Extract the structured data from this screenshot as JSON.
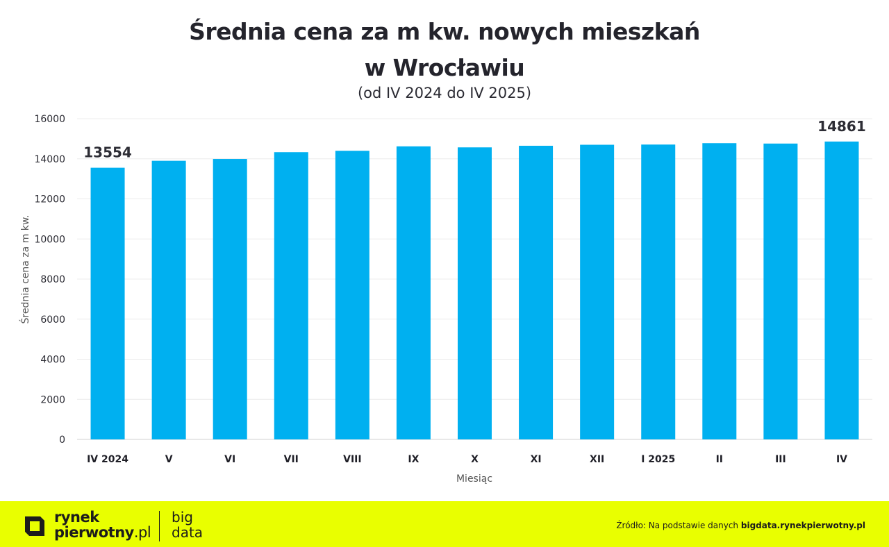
{
  "chart_data": {
    "type": "bar",
    "title_line1": "Średnia cena za m kw. nowych mieszkań",
    "title_line2": "w Wrocławiu",
    "subtitle": "(od IV 2024 do IV 2025)",
    "xlabel": "Miesiąc",
    "ylabel": "Średnia cena za m kw.",
    "categories": [
      "IV 2024",
      "V",
      "VI",
      "VII",
      "VIII",
      "IX",
      "X",
      "XI",
      "XII",
      "I 2025",
      "II",
      "III",
      "IV"
    ],
    "values": [
      13554,
      13900,
      13990,
      14330,
      14400,
      14620,
      14570,
      14650,
      14700,
      14710,
      14780,
      14760,
      14861
    ],
    "data_labels": [
      {
        "category": "IV 2024",
        "text": "13554"
      },
      {
        "category": "IV",
        "text": "14861"
      }
    ],
    "ylim": [
      0,
      16000
    ],
    "yticks": [
      0,
      2000,
      4000,
      6000,
      8000,
      10000,
      12000,
      14000,
      16000
    ],
    "grid": true,
    "bar_color": "#00b0f0"
  },
  "footer": {
    "logo_line1": "rynek",
    "logo_line2_bold": "pierwotny",
    "logo_line2_light": ".pl",
    "bigdata_line1": "big",
    "bigdata_line2": "data",
    "source_prefix": "Źródło: Na podstawie danych",
    "source_link": "bigdata.rynekpierwotny.pl",
    "background_color": "#e9ff00"
  }
}
